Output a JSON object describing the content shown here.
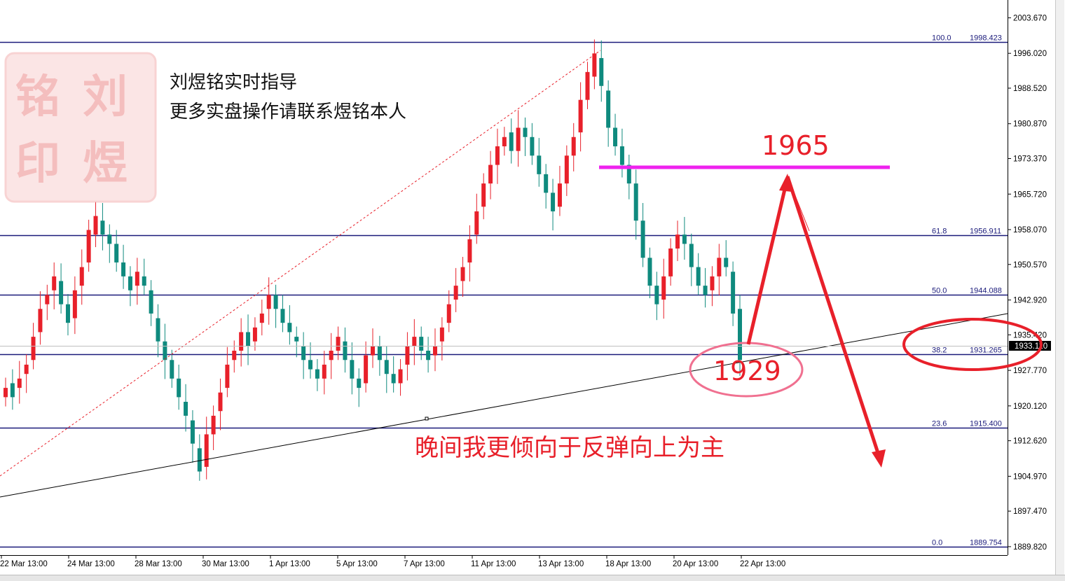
{
  "chart_data": {
    "type": "candlestick",
    "y_axis": {
      "range": [
        1888.0,
        2007.5
      ],
      "tick_labels": [
        "2003.670",
        "1996.020",
        "1988.520",
        "1980.870",
        "1973.370",
        "1965.720",
        "1958.070",
        "1950.570",
        "1942.920",
        "1935.420",
        "1927.770",
        "1920.120",
        "1912.620",
        "1904.970",
        "1897.470",
        "1889.820"
      ],
      "current_price": "1933.110"
    },
    "x_axis": {
      "tick_labels": [
        "22 Mar 13:00",
        "24 Mar 13:00",
        "28 Mar 13:00",
        "30 Mar 13:00",
        "1 Apr 13:00",
        "5 Apr 13:00",
        "7 Apr 13:00",
        "11 Apr 13:00",
        "13 Apr 13:00",
        "18 Apr 13:00",
        "20 Apr 13:00",
        "22 Apr 13:00"
      ]
    },
    "fibonacci": [
      {
        "level": "100.0",
        "price": "1998.423",
        "value": 1998.423
      },
      {
        "level": "61.8",
        "price": "1956.911",
        "value": 1956.911
      },
      {
        "level": "50.0",
        "price": "1944.088",
        "value": 1944.088
      },
      {
        "level": "38.2",
        "price": "1931.265",
        "value": 1931.265
      },
      {
        "level": "23.6",
        "price": "1915.400",
        "value": 1915.4
      },
      {
        "level": "0.0",
        "price": "1889.754",
        "value": 1889.754
      }
    ],
    "candles_close": [
      1924,
      1922,
      1926,
      1929,
      1935,
      1941,
      1944,
      1948,
      1942,
      1938,
      1945,
      1950,
      1958,
      1961,
      1957,
      1955,
      1951,
      1948,
      1945,
      1949,
      1946,
      1940,
      1934,
      1930,
      1926,
      1922,
      1918,
      1912,
      1906,
      1914,
      1918,
      1923,
      1929,
      1932,
      1936,
      1933,
      1937,
      1940,
      1944,
      1941,
      1938,
      1936,
      1934,
      1930,
      1928,
      1926,
      1929,
      1932,
      1935,
      1930,
      1926,
      1924,
      1931,
      1933,
      1930,
      1927,
      1925,
      1928,
      1933,
      1935,
      1932,
      1930,
      1933,
      1937,
      1942,
      1946,
      1950,
      1956,
      1962,
      1968,
      1972,
      1976,
      1978,
      1975,
      1980,
      1978,
      1974,
      1970,
      1966,
      1962,
      1968,
      1974,
      1978,
      1986,
      1992,
      1996,
      1989,
      1980,
      1976,
      1972,
      1968,
      1960,
      1952,
      1946,
      1942,
      1948,
      1954,
      1957,
      1955,
      1950,
      1946,
      1944,
      1948,
      1952,
      1950,
      1940,
      1930
    ],
    "candles_open": [
      1922,
      1925,
      1924,
      1927,
      1930,
      1936,
      1942,
      1945,
      1947,
      1942,
      1939,
      1946,
      1951,
      1957,
      1960,
      1957,
      1955,
      1951,
      1948,
      1946,
      1948,
      1945,
      1939,
      1934,
      1930,
      1926,
      1921,
      1917,
      1911,
      1907,
      1914,
      1919,
      1924,
      1930,
      1932,
      1936,
      1934,
      1938,
      1941,
      1944,
      1941,
      1938,
      1935,
      1933,
      1930,
      1928,
      1926,
      1930,
      1932,
      1934,
      1930,
      1926,
      1925,
      1931,
      1933,
      1930,
      1927,
      1925,
      1929,
      1933,
      1935,
      1932,
      1931,
      1934,
      1938,
      1943,
      1947,
      1951,
      1957,
      1963,
      1968,
      1972,
      1976,
      1979,
      1975,
      1980,
      1978,
      1974,
      1970,
      1966,
      1963,
      1968,
      1974,
      1979,
      1986,
      1991,
      1995,
      1988,
      1980,
      1976,
      1972,
      1968,
      1960,
      1952,
      1946,
      1943,
      1948,
      1954,
      1957,
      1955,
      1950,
      1946,
      1945,
      1948,
      1952,
      1949,
      1941
    ]
  },
  "annotations": {
    "watermark_line1": "刘煜铭实时指导",
    "watermark_line2": "更多实盘操作请联系煜铭本人",
    "seal_chars": [
      "铭",
      "刘",
      "印",
      "煜"
    ],
    "target_up": "1965",
    "support": "1929",
    "comment": "晚间我更倾向于反弹向上为主"
  },
  "colors": {
    "bull": "#e8202a",
    "bear": "#0f8a7e",
    "fib_line": "#1a1a7a",
    "magenta": "#ee22ee",
    "annotation_red": "#e8202a",
    "ellipse_pink": "#f07090",
    "seal": "#f0a0a0"
  }
}
